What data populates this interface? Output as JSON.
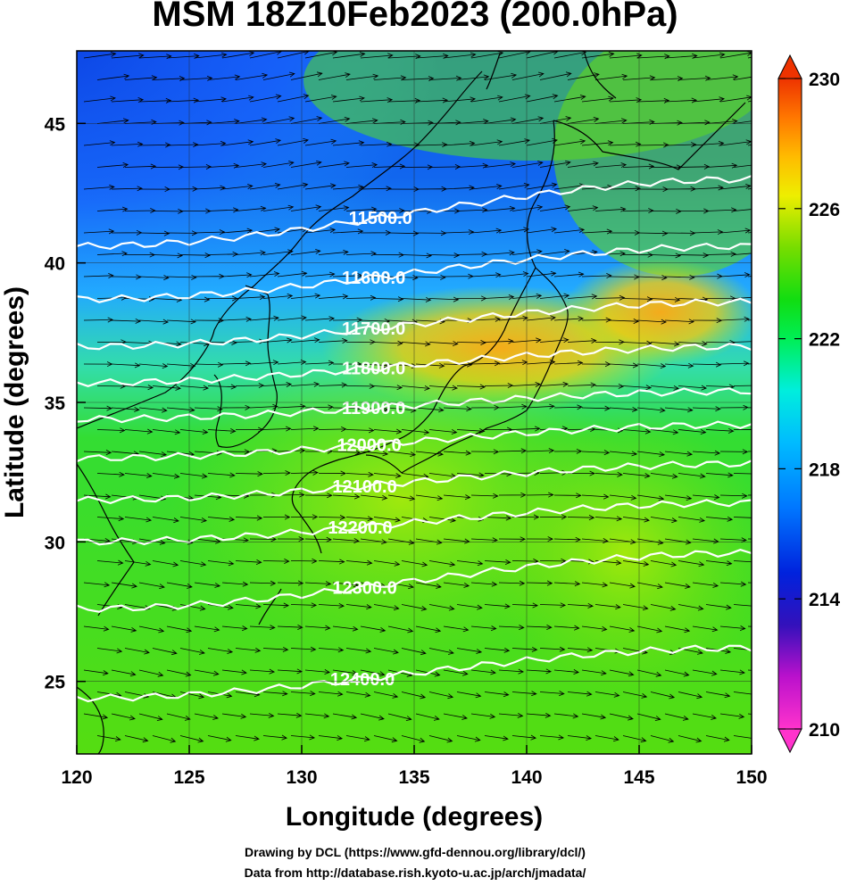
{
  "title": "MSM 18Z10Feb2023 (200.0hPa)",
  "credits": {
    "line1": "Drawing by DCL (https://www.gfd-dennou.org/library/dcl/)",
    "line2": "Data from http://database.rish.kyoto-u.ac.jp/arch/jmadata/"
  },
  "map": {
    "projection": "equirectangular",
    "lon_range": [
      120,
      150
    ],
    "lat_range": [
      22.4,
      47.6
    ],
    "xlabel": "Longitude (degrees)",
    "ylabel": "Latitude  (degrees)",
    "x_ticks": [
      "120",
      "125",
      "130",
      "135",
      "140",
      "145",
      "150"
    ],
    "y_ticks": [
      "25",
      "30",
      "35",
      "40",
      "45"
    ],
    "shaded_field": "temperature",
    "contour_field": "geopotential height",
    "contour_color": "#ffffff",
    "vector_field": "wind",
    "contour_labels": [
      "11500.0",
      "11600.0",
      "11700.0",
      "11800.0",
      "11900.0",
      "12000.0",
      "12100.0",
      "12200.0",
      "12300.0",
      "12400.0"
    ],
    "contours": [
      {
        "value": 11500,
        "lat_west": 40.6,
        "lat_east": 43.0
      },
      {
        "value": 11600,
        "lat_west": 38.7,
        "lat_east": 40.6
      },
      {
        "value": 11700,
        "lat_west": 37.0,
        "lat_east": 38.6
      },
      {
        "value": 11800,
        "lat_west": 35.7,
        "lat_east": 37.0
      },
      {
        "value": 11900,
        "lat_west": 34.4,
        "lat_east": 35.4
      },
      {
        "value": 12000,
        "lat_west": 33.0,
        "lat_east": 34.2
      },
      {
        "value": 12100,
        "lat_west": 31.5,
        "lat_east": 32.8
      },
      {
        "value": 12200,
        "lat_west": 30.0,
        "lat_east": 31.4
      },
      {
        "value": 12300,
        "lat_west": 27.6,
        "lat_east": 29.6
      },
      {
        "value": 12400,
        "lat_west": 24.4,
        "lat_east": 26.2
      }
    ]
  },
  "colorbar": {
    "ticks": [
      "230",
      "226",
      "222",
      "218",
      "214",
      "210"
    ],
    "range": [
      210,
      230
    ],
    "colors": [
      "#ff22cc",
      "#aa00cc",
      "#2200bb",
      "#0044ff",
      "#0099ff",
      "#00ddff",
      "#00ee88",
      "#00dd22",
      "#44dd00",
      "#aaee00",
      "#ffee00",
      "#ffaa00",
      "#ff6600",
      "#ee2200"
    ]
  }
}
